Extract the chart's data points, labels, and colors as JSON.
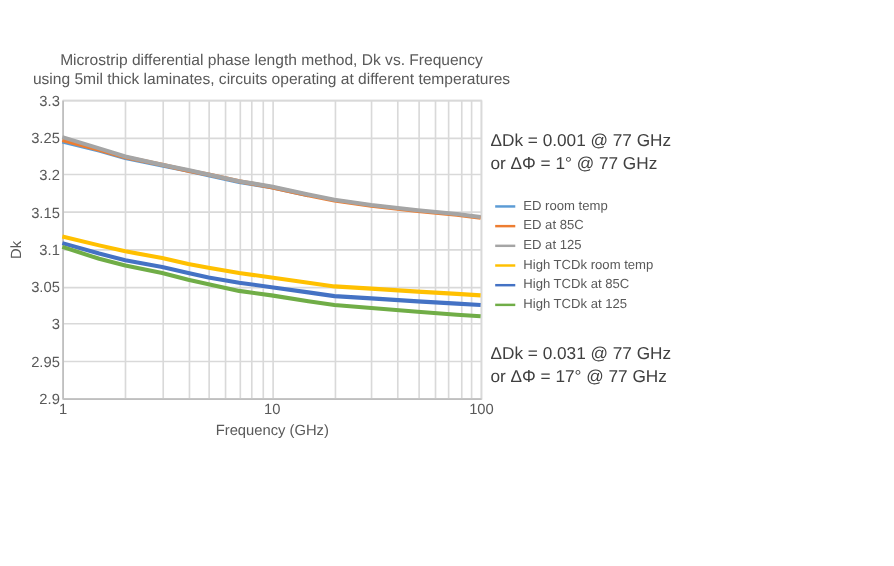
{
  "chart_data": {
    "type": "line",
    "title": "Microstrip differential phase length method, Dk vs. Frequency\nusing 5mil thick laminates, circuits operating at different temperatures",
    "xlabel": "Frequency (GHz)",
    "ylabel": "Dk",
    "x": [
      1,
      1.5,
      2,
      3,
      4,
      5,
      7,
      10,
      15,
      20,
      30,
      50,
      77,
      100
    ],
    "series": [
      {
        "name": "ED room temp",
        "color": "#5b9bd5",
        "values": [
          3.244,
          3.232,
          3.222,
          3.212,
          3.205,
          3.199,
          3.19,
          3.183,
          3.172,
          null,
          null,
          null,
          null,
          null
        ]
      },
      {
        "name": "ED at 85C",
        "color": "#ed7d31",
        "values": [
          3.246,
          3.233,
          3.223,
          3.213,
          3.205,
          3.2,
          3.191,
          3.183,
          3.172,
          3.165,
          3.158,
          3.151,
          3.146,
          3.142
        ]
      },
      {
        "name": "ED at 125",
        "color": "#a5a5a5",
        "values": [
          3.25,
          3.235,
          3.224,
          3.213,
          3.206,
          3.2,
          3.191,
          3.184,
          3.173,
          3.166,
          3.159,
          3.152,
          3.147,
          3.143
        ]
      },
      {
        "name": "High TCDk room temp",
        "color": "#ffc000",
        "values": [
          3.117,
          3.105,
          3.097,
          3.088,
          3.08,
          3.075,
          3.068,
          3.062,
          3.055,
          3.05,
          3.047,
          3.043,
          3.04,
          3.038
        ]
      },
      {
        "name": "High TCDk at 85C",
        "color": "#4472c4",
        "values": [
          3.108,
          3.094,
          3.085,
          3.076,
          3.068,
          3.062,
          3.055,
          3.049,
          3.042,
          3.037,
          3.034,
          3.03,
          3.027,
          3.025
        ]
      },
      {
        "name": "High TCDk at 125",
        "color": "#70ad47",
        "values": [
          3.103,
          3.087,
          3.078,
          3.068,
          3.059,
          3.053,
          3.044,
          3.038,
          3.03,
          3.025,
          3.021,
          3.016,
          3.012,
          3.01
        ]
      }
    ],
    "xlim": [
      1,
      100
    ],
    "xticks": [
      1,
      {
        "value": 2,
        "label": null
      },
      {
        "value": 3,
        "label": null
      },
      {
        "value": 4,
        "label": null
      },
      {
        "value": 5,
        "label": null
      },
      {
        "value": 6,
        "label": null
      },
      {
        "value": 7,
        "label": null
      },
      {
        "value": 8,
        "label": null
      },
      {
        "value": 9,
        "label": null
      },
      10,
      {
        "value": 20,
        "label": null
      },
      {
        "value": 30,
        "label": null
      },
      {
        "value": 40,
        "label": null
      },
      {
        "value": 50,
        "label": null
      },
      {
        "value": 60,
        "label": null
      },
      {
        "value": 70,
        "label": null
      },
      {
        "value": 80,
        "label": null
      },
      {
        "value": 90,
        "label": null
      },
      100
    ],
    "ylim": [
      2.9,
      3.3
    ],
    "yticks": [
      2.9,
      2.95,
      3,
      3.05,
      3.1,
      3.15,
      3.2,
      3.25,
      3.3
    ],
    "log": "x",
    "grid": true,
    "legend": "right",
    "marker": "none",
    "line_style": "solid",
    "annotations": [
      "ΔDk = 0.001 @ 77 GHz\nor ΔΦ = 1° @ 77 GHz",
      "ΔDk = 0.031 @ 77 GHz\nor ΔΦ = 17° @ 77 GHz"
    ]
  }
}
